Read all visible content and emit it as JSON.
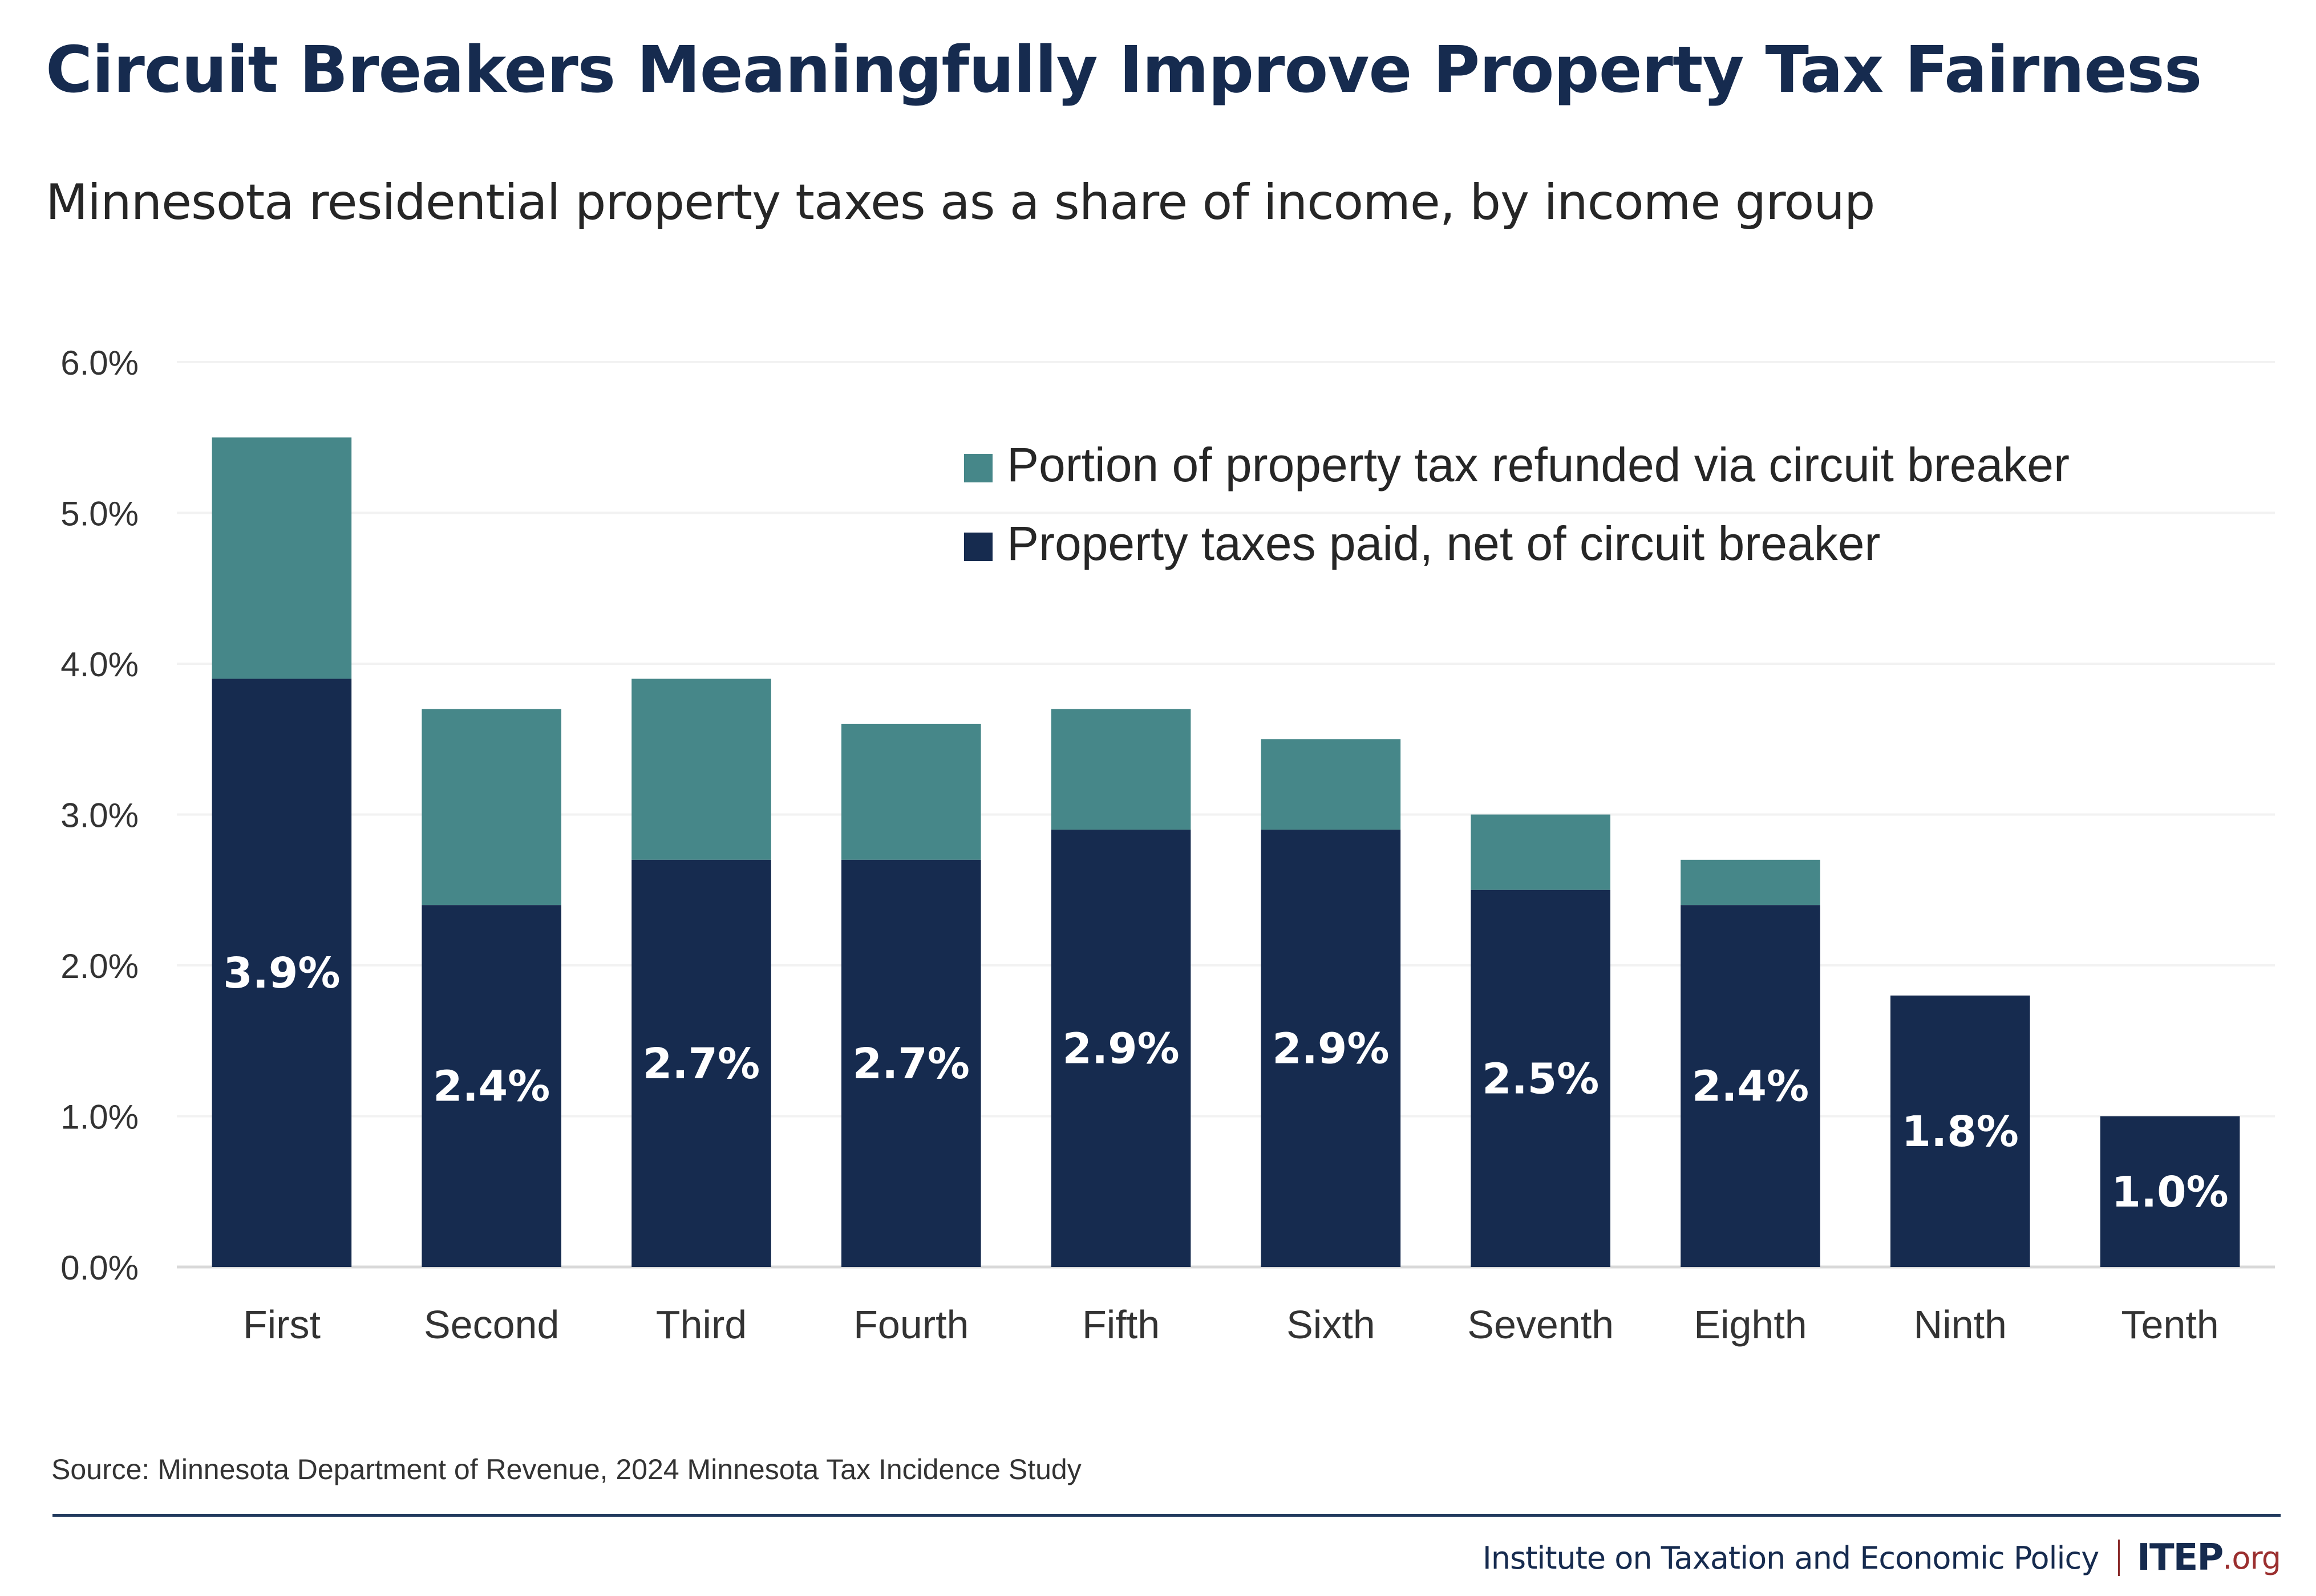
{
  "header": {
    "title": "Circuit Breakers Meaningfully Improve Property Tax Fairness",
    "subtitle": "Minnesota residential property taxes as a share of income, by income group"
  },
  "footer": {
    "source": "Source: Minnesota Department of Revenue, 2024 Minnesota Tax Incidence Study",
    "organization": "Institute on Taxation and Economic Policy",
    "brand": "ITEP",
    "brand_tld": ".org"
  },
  "colors": {
    "refunded": "#468789",
    "net": "#162b4f",
    "title": "#162b4f",
    "gridline": "#f2f2f2",
    "axis": "#d9d9d9",
    "brand_accent": "#9b2f2f"
  },
  "chart_data": {
    "type": "bar",
    "stacked": true,
    "title": "Circuit Breakers Meaningfully Improve Property Tax Fairness",
    "subtitle": "Minnesota residential property taxes as a share of income, by income group",
    "xlabel": "",
    "ylabel": "",
    "categories": [
      "First",
      "Second",
      "Third",
      "Fourth",
      "Fifth",
      "Sixth",
      "Seventh",
      "Eighth",
      "Ninth",
      "Tenth"
    ],
    "series": [
      {
        "name": "Property taxes paid, net of circuit breaker",
        "color": "#162b4f",
        "values": [
          3.9,
          2.4,
          2.7,
          2.7,
          2.9,
          2.9,
          2.5,
          2.4,
          1.8,
          1.0
        ]
      },
      {
        "name": "Portion of property tax refunded via circuit breaker",
        "color": "#468789",
        "values": [
          1.6,
          1.3,
          1.2,
          0.9,
          0.8,
          0.6,
          0.5,
          0.3,
          0.0,
          0.0
        ]
      }
    ],
    "data_labels": [
      "3.9%",
      "2.4%",
      "2.7%",
      "2.7%",
      "2.9%",
      "2.9%",
      "2.5%",
      "2.4%",
      "1.8%",
      "1.0%"
    ],
    "ylim": [
      0,
      6
    ],
    "yticks": [
      0,
      1,
      2,
      3,
      4,
      5,
      6
    ],
    "ytick_labels": [
      "0.0%",
      "1.0%",
      "2.0%",
      "3.0%",
      "4.0%",
      "5.0%",
      "6.0%"
    ],
    "grid": true,
    "legend": {
      "position": "top-right",
      "entries": [
        {
          "label": "Portion of property tax refunded via circuit breaker",
          "color": "#468789"
        },
        {
          "label": "Property taxes paid, net of circuit breaker",
          "color": "#162b4f"
        }
      ]
    }
  }
}
